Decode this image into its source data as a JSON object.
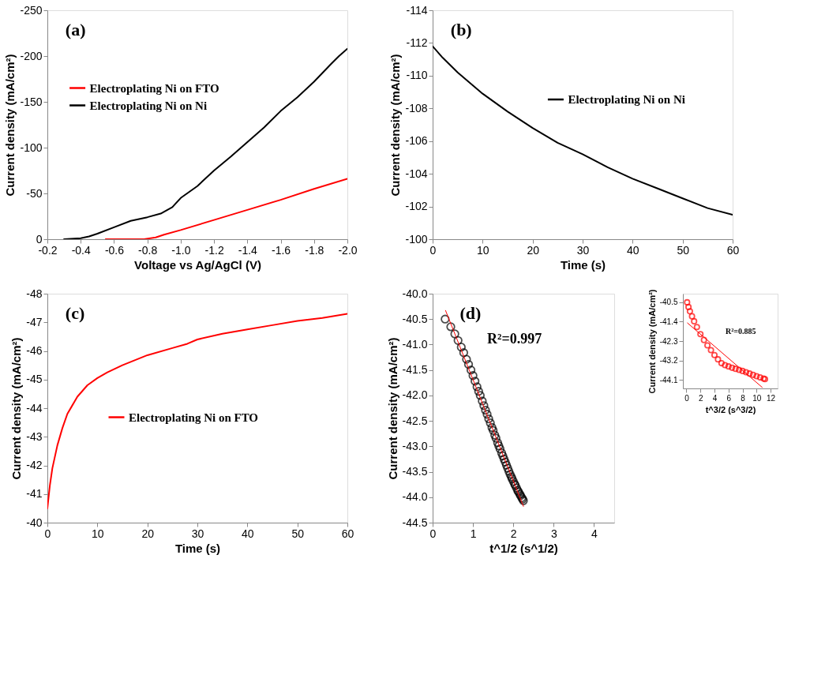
{
  "chart_data": [
    {
      "type": "line",
      "xlabel": "Voltage vs Ag/AgCl (V)",
      "ylabel": "Current density (mA/cm²)",
      "annotations": [
        "(a)"
      ],
      "xlim": [
        -0.2,
        -2.0
      ],
      "ylim": [
        0,
        -250
      ],
      "xticks": [
        -0.2,
        -0.4,
        -0.6,
        -0.8,
        {
          "value": -1.0,
          "label": "-1.0"
        },
        -1.2,
        -1.4,
        -1.6,
        -1.8,
        {
          "value": -2.0,
          "label": "-2.0"
        }
      ],
      "yticks": [
        0,
        -50,
        -100,
        -150,
        -200,
        -250
      ],
      "grid": false,
      "legend": "left",
      "series": [
        {
          "name": "Electroplating Ni on FTO",
          "color": "#ff0000",
          "x": [
            -0.55,
            -0.6,
            -0.7,
            -0.78,
            -0.85,
            -0.9,
            -1.0,
            -1.2,
            -1.4,
            -1.6,
            -1.8,
            -2.0
          ],
          "values": [
            0,
            0,
            0,
            0,
            -2,
            -5,
            -10,
            -21,
            -32,
            -43,
            -55,
            -66
          ]
        },
        {
          "name": "Electroplating Ni on Ni",
          "color": "#000000",
          "x": [
            -0.3,
            -0.4,
            -0.45,
            -0.5,
            -0.6,
            -0.7,
            -0.8,
            -0.88,
            -0.95,
            -1.0,
            -1.1,
            -1.2,
            -1.3,
            -1.4,
            -1.5,
            -1.6,
            -1.7,
            -1.8,
            -1.9,
            -1.95,
            -2.0
          ],
          "values": [
            0,
            -1,
            -3,
            -6,
            -13,
            -20,
            -24,
            -28,
            -35,
            -45,
            -58,
            -75,
            -90,
            -106,
            -122,
            -140,
            -155,
            -172,
            -191,
            -200,
            -208
          ]
        }
      ]
    },
    {
      "type": "line",
      "xlabel": "Time (s)",
      "ylabel": "Current density (mA/cm²)",
      "annotations": [
        "(b)"
      ],
      "xlim": [
        0,
        60
      ],
      "ylim": [
        -100,
        -114
      ],
      "xticks": [
        0,
        10,
        20,
        30,
        40,
        50,
        60
      ],
      "yticks": [
        -100,
        -102,
        -104,
        -106,
        -108,
        -110,
        -112,
        -114
      ],
      "grid": false,
      "legend": "right",
      "series": [
        {
          "name": "Electroplating Ni on Ni",
          "color": "#000000",
          "x": [
            0,
            2,
            5,
            10,
            15,
            20,
            25,
            30,
            35,
            40,
            45,
            50,
            55,
            60
          ],
          "values": [
            -111.8,
            -111.1,
            -110.2,
            -108.9,
            -107.8,
            -106.8,
            -105.9,
            -105.2,
            -104.4,
            -103.7,
            -103.1,
            -102.5,
            -101.9,
            -101.5
          ]
        }
      ]
    },
    {
      "type": "line",
      "xlabel": "Time (s)",
      "ylabel": "Current density (mA/cm²)",
      "annotations": [
        "(c)"
      ],
      "xlim": [
        0,
        60
      ],
      "ylim": [
        -40,
        -48
      ],
      "xticks": [
        0,
        10,
        20,
        30,
        40,
        50,
        60
      ],
      "yticks": [
        -40,
        -41,
        -42,
        -43,
        -44,
        -45,
        -46,
        -47,
        -48
      ],
      "grid": false,
      "legend": "center",
      "series": [
        {
          "name": "Electroplating Ni on FTO",
          "color": "#ff0000",
          "x": [
            0,
            0.5,
            1,
            2,
            3,
            4,
            5,
            6,
            8,
            10,
            12,
            15,
            20,
            25,
            28,
            30,
            35,
            40,
            45,
            50,
            55,
            60
          ],
          "values": [
            -40.5,
            -41.3,
            -41.9,
            -42.7,
            -43.3,
            -43.8,
            -44.1,
            -44.4,
            -44.8,
            -45.05,
            -45.25,
            -45.5,
            -45.85,
            -46.1,
            -46.25,
            -46.4,
            -46.6,
            -46.75,
            -46.9,
            -47.05,
            -47.15,
            -47.3
          ]
        }
      ]
    },
    {
      "type": "scatter",
      "xlabel": "t^1/2 (s^1/2)",
      "ylabel": "Current density (mA/cm²)",
      "annotations": [
        "(d)",
        "R²=0.997"
      ],
      "xlim": [
        0,
        4.5
      ],
      "ylim": [
        -44.5,
        -40.0
      ],
      "xticks": [
        0,
        1,
        2,
        3,
        4
      ],
      "yticks": [
        {
          "value": -44.5,
          "label": "-44.5"
        },
        {
          "value": -44.0,
          "label": "-44.0"
        },
        {
          "value": -43.5,
          "label": "-43.5"
        },
        {
          "value": -43.0,
          "label": "-43.0"
        },
        {
          "value": -42.5,
          "label": "-42.5"
        },
        {
          "value": -42.0,
          "label": "-42.0"
        },
        {
          "value": -41.5,
          "label": "-41.5"
        },
        {
          "value": -41.0,
          "label": "-41.0"
        },
        {
          "value": -40.5,
          "label": "-40.5"
        },
        {
          "value": -40.0,
          "label": "-40.0"
        }
      ],
      "grid": false,
      "marker": "circle",
      "series": [
        {
          "color": "#000000",
          "x": [
            0.31,
            0.45,
            0.55,
            0.63,
            0.71,
            0.77,
            0.84,
            0.89,
            0.95,
            1.0,
            1.05,
            1.1,
            1.14,
            1.18,
            1.23,
            1.27,
            1.31,
            1.35,
            1.39,
            1.43,
            1.47,
            1.5,
            1.54,
            1.57,
            1.61,
            1.64,
            1.67,
            1.71,
            1.74,
            1.77,
            1.8,
            1.83,
            1.86,
            1.89,
            1.92,
            1.95,
            1.97,
            2.0,
            2.03,
            2.05,
            2.08,
            2.11,
            2.13,
            2.16,
            2.18,
            2.21,
            2.23,
            2.25
          ],
          "values": [
            -40.5,
            -40.65,
            -40.79,
            -40.92,
            -41.05,
            -41.16,
            -41.29,
            -41.39,
            -41.5,
            -41.61,
            -41.72,
            -41.83,
            -41.92,
            -42.0,
            -42.11,
            -42.2,
            -42.29,
            -42.37,
            -42.46,
            -42.54,
            -42.63,
            -42.69,
            -42.78,
            -42.84,
            -42.93,
            -42.99,
            -43.05,
            -43.13,
            -43.19,
            -43.25,
            -43.31,
            -43.37,
            -43.43,
            -43.49,
            -43.55,
            -43.6,
            -43.64,
            -43.69,
            -43.74,
            -43.77,
            -43.82,
            -43.87,
            -43.9,
            -43.94,
            -43.97,
            -44.01,
            -44.04,
            -44.07
          ]
        },
        {
          "type": "line",
          "marker": "none",
          "color": "#ff0000",
          "x": [
            0.32,
            2.25
          ],
          "values": [
            -40.33,
            -44.18
          ]
        }
      ]
    },
    {
      "type": "scatter",
      "xlabel": "t^3/2 (s^3/2)",
      "ylabel": "Current density (mA/cm²)",
      "annotations": [
        "R²=0.885"
      ],
      "xlim": [
        -0.5,
        13
      ],
      "ylim": [
        -44.5,
        -40.1
      ],
      "xticks": [
        0,
        2,
        4,
        6,
        8,
        10,
        12
      ],
      "yticks": [
        -44.1,
        -43.2,
        -42.3,
        -41.4,
        -40.5
      ],
      "grid": false,
      "marker": "circle",
      "series": [
        {
          "color": "#ff0000",
          "x": [
            0.1,
            0.3,
            0.5,
            0.8,
            1.1,
            1.5,
            2,
            2.5,
            3,
            3.5,
            4,
            4.5,
            5,
            5.5,
            6,
            6.5,
            7,
            7.5,
            8,
            8.5,
            9,
            9.5,
            10,
            10.5,
            11,
            11.2
          ],
          "values": [
            -40.5,
            -40.72,
            -40.92,
            -41.15,
            -41.38,
            -41.65,
            -41.98,
            -42.25,
            -42.5,
            -42.72,
            -42.95,
            -43.15,
            -43.33,
            -43.42,
            -43.48,
            -43.54,
            -43.59,
            -43.64,
            -43.69,
            -43.75,
            -43.81,
            -43.87,
            -43.93,
            -43.99,
            -44.04,
            -44.07
          ]
        },
        {
          "type": "line",
          "marker": "none",
          "color": "#ff0000",
          "x": [
            0.15,
            10.8
          ],
          "values": [
            -41.46,
            -44.45
          ]
        }
      ]
    }
  ]
}
